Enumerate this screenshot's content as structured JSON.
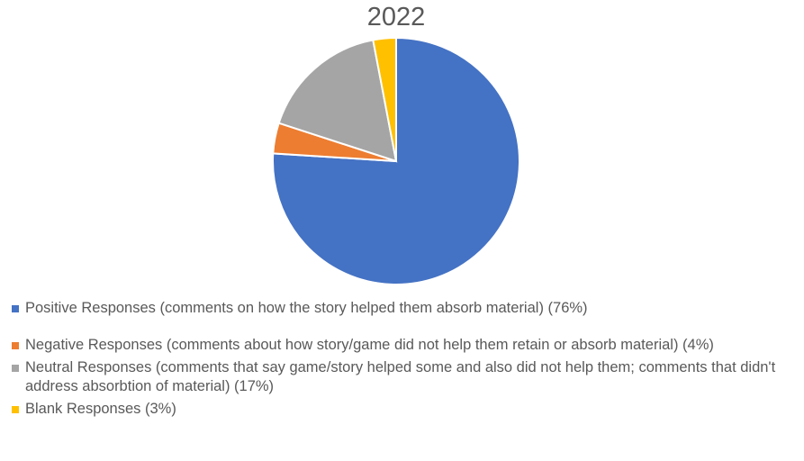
{
  "chart_data": {
    "type": "pie",
    "title": "2022",
    "slices": [
      {
        "label": "Positive Responses (comments on how the story helped them absorb material) (76%)",
        "value": 76,
        "color": "#4472C4"
      },
      {
        "label": "Negative Responses (comments about how story/game did not help them retain or absorb material) (4%)",
        "value": 4,
        "color": "#ED7D31"
      },
      {
        "label": "Neutral Responses (comments that say game/story helped some and also did not help them; comments that didn't address absorbtion of material) (17%)",
        "value": 17,
        "color": "#A5A5A5"
      },
      {
        "label": "Blank Responses (3%)",
        "value": 3,
        "color": "#FFC000"
      }
    ],
    "legend_position": "bottom"
  }
}
